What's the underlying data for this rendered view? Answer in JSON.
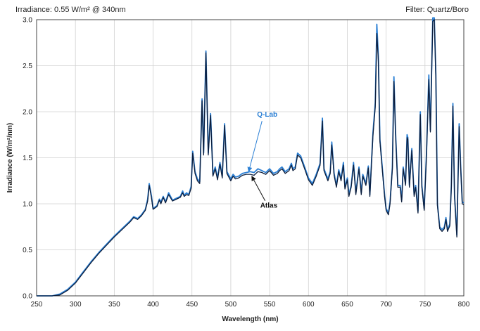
{
  "header": {
    "left_text": "Irradiance: 0.55 W/m² @ 340nm",
    "right_text": "Filter: Quartz/Boro"
  },
  "chart_data": {
    "type": "line",
    "title": "",
    "xlabel": "Wavelength (nm)",
    "ylabel": "Irradiance (W/m²/nm)",
    "xlim": [
      250,
      800
    ],
    "ylim": [
      0,
      3.0
    ],
    "x_ticks": [
      250,
      300,
      350,
      400,
      450,
      500,
      550,
      600,
      650,
      700,
      750,
      800
    ],
    "y_ticks": [
      0.0,
      0.5,
      1.0,
      1.5,
      2.0,
      2.5,
      3.0
    ],
    "x_tick_labels": [
      "250",
      "300",
      "350",
      "400",
      "450",
      "500",
      "550",
      "600",
      "650",
      "700",
      "750",
      "800"
    ],
    "y_tick_labels": [
      "0.0",
      "0.5",
      "1.0",
      "1.5",
      "2.0",
      "2.5",
      "3.0"
    ],
    "grid": true,
    "colors": {
      "qlab": "#2a7fd4",
      "atlas": "#0d1e3c",
      "qlab_label": "#2a7fd4",
      "atlas_label": "#111111"
    },
    "annotations": [
      {
        "text": "Q-Lab",
        "series": "Q-Lab",
        "point": [
          523,
          1.35
        ]
      },
      {
        "text": "Atlas",
        "series": "Atlas",
        "point": [
          527,
          1.3
        ]
      }
    ],
    "series": [
      {
        "name": "Q-Lab",
        "points": [
          [
            250,
            0
          ],
          [
            270,
            0
          ],
          [
            280,
            0.02
          ],
          [
            290,
            0.07
          ],
          [
            300,
            0.15
          ],
          [
            310,
            0.26
          ],
          [
            320,
            0.37
          ],
          [
            330,
            0.47
          ],
          [
            340,
            0.56
          ],
          [
            350,
            0.65
          ],
          [
            360,
            0.73
          ],
          [
            370,
            0.81
          ],
          [
            375,
            0.86
          ],
          [
            380,
            0.84
          ],
          [
            385,
            0.88
          ],
          [
            390,
            0.94
          ],
          [
            393,
            1.05
          ],
          [
            395,
            1.22
          ],
          [
            398,
            1.08
          ],
          [
            400,
            0.95
          ],
          [
            405,
            0.98
          ],
          [
            408,
            1.05
          ],
          [
            410,
            1.02
          ],
          [
            413,
            1.08
          ],
          [
            416,
            1.02
          ],
          [
            420,
            1.12
          ],
          [
            425,
            1.04
          ],
          [
            430,
            1.06
          ],
          [
            435,
            1.08
          ],
          [
            438,
            1.14
          ],
          [
            440,
            1.09
          ],
          [
            443,
            1.12
          ],
          [
            446,
            1.1
          ],
          [
            449,
            1.19
          ],
          [
            451,
            1.57
          ],
          [
            454,
            1.35
          ],
          [
            457,
            1.27
          ],
          [
            460,
            1.24
          ],
          [
            463,
            2.14
          ],
          [
            465,
            1.55
          ],
          [
            468,
            2.66
          ],
          [
            471,
            1.55
          ],
          [
            474,
            1.98
          ],
          [
            477,
            1.32
          ],
          [
            480,
            1.4
          ],
          [
            483,
            1.28
          ],
          [
            486,
            1.45
          ],
          [
            489,
            1.3
          ],
          [
            492,
            1.87
          ],
          [
            495,
            1.35
          ],
          [
            500,
            1.27
          ],
          [
            503,
            1.32
          ],
          [
            506,
            1.29
          ],
          [
            510,
            1.3
          ],
          [
            515,
            1.33
          ],
          [
            520,
            1.34
          ],
          [
            525,
            1.35
          ],
          [
            530,
            1.34
          ],
          [
            535,
            1.38
          ],
          [
            540,
            1.36
          ],
          [
            545,
            1.34
          ],
          [
            550,
            1.38
          ],
          [
            555,
            1.33
          ],
          [
            560,
            1.35
          ],
          [
            563,
            1.38
          ],
          [
            566,
            1.4
          ],
          [
            570,
            1.35
          ],
          [
            575,
            1.38
          ],
          [
            578,
            1.44
          ],
          [
            580,
            1.38
          ],
          [
            583,
            1.4
          ],
          [
            586,
            1.55
          ],
          [
            590,
            1.52
          ],
          [
            595,
            1.4
          ],
          [
            600,
            1.28
          ],
          [
            605,
            1.22
          ],
          [
            610,
            1.32
          ],
          [
            615,
            1.44
          ],
          [
            618,
            1.93
          ],
          [
            620,
            1.38
          ],
          [
            625,
            1.27
          ],
          [
            628,
            1.35
          ],
          [
            630,
            1.67
          ],
          [
            633,
            1.33
          ],
          [
            636,
            1.2
          ],
          [
            639,
            1.37
          ],
          [
            642,
            1.27
          ],
          [
            645,
            1.45
          ],
          [
            647,
            1.18
          ],
          [
            650,
            1.28
          ],
          [
            652,
            1.1
          ],
          [
            655,
            1.2
          ],
          [
            658,
            1.45
          ],
          [
            661,
            1.12
          ],
          [
            665,
            1.4
          ],
          [
            668,
            1.12
          ],
          [
            670,
            1.32
          ],
          [
            674,
            1.22
          ],
          [
            677,
            1.41
          ],
          [
            679,
            1.1
          ],
          [
            683,
            1.77
          ],
          [
            686,
            2.1
          ],
          [
            688,
            2.95
          ],
          [
            690,
            2.6
          ],
          [
            692,
            1.7
          ],
          [
            695,
            1.4
          ],
          [
            698,
            1.1
          ],
          [
            700,
            0.95
          ],
          [
            703,
            0.9
          ],
          [
            705,
            1.02
          ],
          [
            708,
            1.4
          ],
          [
            710,
            2.38
          ],
          [
            712,
            1.8
          ],
          [
            715,
            1.2
          ],
          [
            718,
            1.2
          ],
          [
            720,
            1.04
          ],
          [
            722,
            1.4
          ],
          [
            725,
            1.22
          ],
          [
            727,
            1.75
          ],
          [
            728,
            1.72
          ],
          [
            730,
            1.2
          ],
          [
            733,
            1.6
          ],
          [
            736,
            1.1
          ],
          [
            738,
            1.2
          ],
          [
            741,
            0.92
          ],
          [
            744,
            2.0
          ],
          [
            746,
            1.2
          ],
          [
            749,
            0.95
          ],
          [
            752,
            1.55
          ],
          [
            755,
            2.4
          ],
          [
            757,
            1.8
          ],
          [
            760,
            3.02
          ],
          [
            762,
            3.02
          ],
          [
            764,
            2.4
          ],
          [
            766,
            1.0
          ],
          [
            769,
            0.75
          ],
          [
            772,
            0.72
          ],
          [
            775,
            0.75
          ],
          [
            777,
            0.85
          ],
          [
            779,
            0.72
          ],
          [
            782,
            0.78
          ],
          [
            784,
            1.2
          ],
          [
            786,
            2.09
          ],
          [
            788,
            1.1
          ],
          [
            791,
            0.66
          ],
          [
            794,
            1.87
          ],
          [
            796,
            1.4
          ],
          [
            798,
            1.02
          ],
          [
            800,
            1.01
          ]
        ]
      },
      {
        "name": "Atlas",
        "points": [
          [
            250,
            0
          ],
          [
            270,
            0
          ],
          [
            280,
            0.01
          ],
          [
            290,
            0.06
          ],
          [
            300,
            0.14
          ],
          [
            310,
            0.25
          ],
          [
            320,
            0.36
          ],
          [
            330,
            0.46
          ],
          [
            340,
            0.55
          ],
          [
            350,
            0.64
          ],
          [
            360,
            0.72
          ],
          [
            370,
            0.8
          ],
          [
            375,
            0.85
          ],
          [
            380,
            0.83
          ],
          [
            385,
            0.87
          ],
          [
            390,
            0.93
          ],
          [
            393,
            1.03
          ],
          [
            395,
            1.2
          ],
          [
            398,
            1.06
          ],
          [
            400,
            0.94
          ],
          [
            405,
            0.97
          ],
          [
            408,
            1.04
          ],
          [
            410,
            1.0
          ],
          [
            413,
            1.07
          ],
          [
            416,
            1.01
          ],
          [
            420,
            1.1
          ],
          [
            425,
            1.03
          ],
          [
            430,
            1.05
          ],
          [
            435,
            1.07
          ],
          [
            438,
            1.12
          ],
          [
            440,
            1.08
          ],
          [
            443,
            1.1
          ],
          [
            446,
            1.09
          ],
          [
            449,
            1.17
          ],
          [
            451,
            1.55
          ],
          [
            454,
            1.33
          ],
          [
            457,
            1.25
          ],
          [
            460,
            1.22
          ],
          [
            463,
            2.12
          ],
          [
            465,
            1.53
          ],
          [
            468,
            2.64
          ],
          [
            471,
            1.53
          ],
          [
            474,
            1.96
          ],
          [
            477,
            1.3
          ],
          [
            480,
            1.38
          ],
          [
            483,
            1.26
          ],
          [
            486,
            1.43
          ],
          [
            489,
            1.28
          ],
          [
            492,
            1.85
          ],
          [
            495,
            1.33
          ],
          [
            500,
            1.25
          ],
          [
            503,
            1.3
          ],
          [
            506,
            1.27
          ],
          [
            510,
            1.28
          ],
          [
            515,
            1.31
          ],
          [
            520,
            1.32
          ],
          [
            525,
            1.32
          ],
          [
            530,
            1.31
          ],
          [
            535,
            1.35
          ],
          [
            540,
            1.34
          ],
          [
            545,
            1.32
          ],
          [
            550,
            1.36
          ],
          [
            555,
            1.31
          ],
          [
            560,
            1.33
          ],
          [
            563,
            1.36
          ],
          [
            566,
            1.38
          ],
          [
            570,
            1.33
          ],
          [
            575,
            1.36
          ],
          [
            578,
            1.42
          ],
          [
            580,
            1.36
          ],
          [
            583,
            1.38
          ],
          [
            586,
            1.53
          ],
          [
            590,
            1.5
          ],
          [
            595,
            1.38
          ],
          [
            600,
            1.26
          ],
          [
            605,
            1.2
          ],
          [
            610,
            1.3
          ],
          [
            615,
            1.42
          ],
          [
            618,
            1.9
          ],
          [
            620,
            1.36
          ],
          [
            625,
            1.25
          ],
          [
            628,
            1.33
          ],
          [
            630,
            1.64
          ],
          [
            633,
            1.31
          ],
          [
            636,
            1.18
          ],
          [
            639,
            1.35
          ],
          [
            642,
            1.25
          ],
          [
            645,
            1.42
          ],
          [
            647,
            1.16
          ],
          [
            650,
            1.26
          ],
          [
            652,
            1.08
          ],
          [
            655,
            1.18
          ],
          [
            658,
            1.42
          ],
          [
            661,
            1.1
          ],
          [
            665,
            1.38
          ],
          [
            668,
            1.1
          ],
          [
            670,
            1.3
          ],
          [
            674,
            1.2
          ],
          [
            677,
            1.39
          ],
          [
            679,
            1.08
          ],
          [
            683,
            1.74
          ],
          [
            686,
            2.05
          ],
          [
            688,
            2.85
          ],
          [
            690,
            2.55
          ],
          [
            692,
            1.68
          ],
          [
            695,
            1.38
          ],
          [
            698,
            1.08
          ],
          [
            700,
            0.93
          ],
          [
            703,
            0.88
          ],
          [
            705,
            1.0
          ],
          [
            708,
            1.38
          ],
          [
            710,
            2.33
          ],
          [
            712,
            1.78
          ],
          [
            715,
            1.18
          ],
          [
            718,
            1.18
          ],
          [
            720,
            1.02
          ],
          [
            722,
            1.38
          ],
          [
            725,
            1.2
          ],
          [
            727,
            1.72
          ],
          [
            728,
            1.7
          ],
          [
            730,
            1.18
          ],
          [
            733,
            1.58
          ],
          [
            736,
            1.08
          ],
          [
            738,
            1.18
          ],
          [
            741,
            0.9
          ],
          [
            744,
            1.97
          ],
          [
            746,
            1.18
          ],
          [
            749,
            0.93
          ],
          [
            752,
            1.53
          ],
          [
            755,
            2.35
          ],
          [
            757,
            1.78
          ],
          [
            760,
            2.98
          ],
          [
            762,
            3.0
          ],
          [
            764,
            2.35
          ],
          [
            766,
            0.98
          ],
          [
            769,
            0.73
          ],
          [
            772,
            0.7
          ],
          [
            775,
            0.73
          ],
          [
            777,
            0.83
          ],
          [
            779,
            0.7
          ],
          [
            782,
            0.76
          ],
          [
            784,
            1.18
          ],
          [
            786,
            2.06
          ],
          [
            788,
            1.08
          ],
          [
            791,
            0.64
          ],
          [
            794,
            1.84
          ],
          [
            796,
            1.38
          ],
          [
            798,
            1.0
          ],
          [
            800,
            0.99
          ]
        ]
      }
    ]
  }
}
